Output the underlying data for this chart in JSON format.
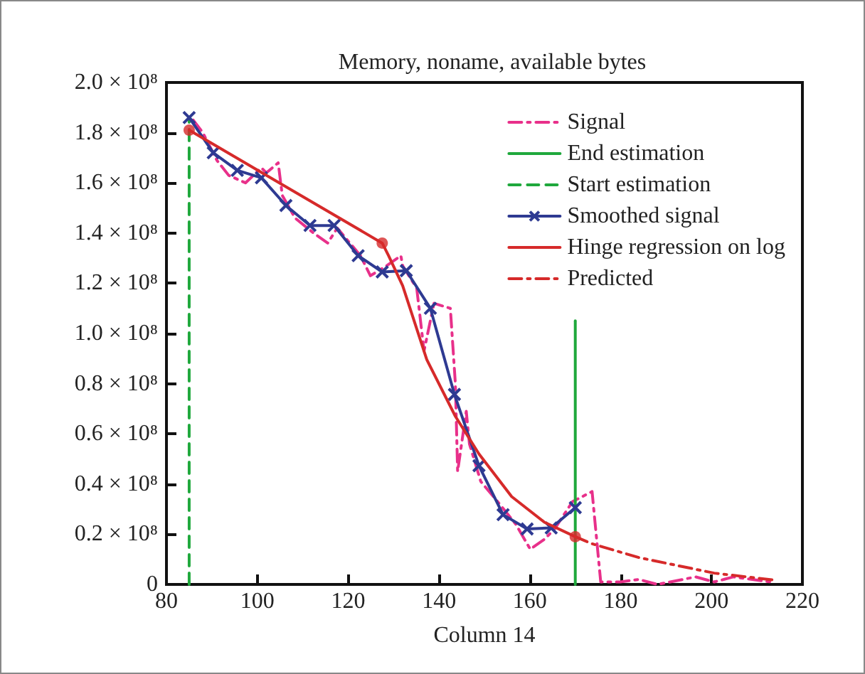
{
  "chart_data": {
    "type": "line",
    "title": "Memory, noname, available bytes",
    "xlabel": "Column 14",
    "xlim": [
      80,
      220
    ],
    "xticks": [
      80,
      100,
      120,
      140,
      160,
      180,
      200,
      220
    ],
    "ylim": [
      0,
      200000000
    ],
    "yticks": [
      0,
      {
        "value": 20000000,
        "label": "0.2 × 10⁸"
      },
      {
        "value": 40000000,
        "label": "0.4 × 10⁸"
      },
      {
        "value": 60000000,
        "label": "0.6 × 10⁸"
      },
      {
        "value": 80000000,
        "label": "0.8 × 10⁸"
      },
      {
        "value": 100000000,
        "label": "1.0 × 10⁸"
      },
      {
        "value": 120000000,
        "label": "1.2 × 10⁸"
      },
      {
        "value": 140000000,
        "label": "1.4 × 10⁸"
      },
      {
        "value": 160000000,
        "label": "1.6 × 10⁸"
      },
      {
        "value": 180000000,
        "label": "1.8 × 10⁸"
      },
      {
        "value": 200000000,
        "label": "2.0 × 10⁸"
      }
    ],
    "grid": false,
    "legend": "top right",
    "series": [
      {
        "name": "Signal",
        "color": "#e8308a",
        "line_style": "dashdot",
        "marker": "none",
        "x": [
          85.9,
          88.0,
          91.1,
          93.7,
          97.4,
          100.9,
          102.0,
          104.6,
          105.5,
          108.3,
          112.4,
          115.5,
          117.6,
          122.7,
          124.9,
          128.5,
          131.6,
          132.0,
          135.1,
          136.7,
          138.9,
          142.5,
          143.6,
          144.1,
          146.0,
          146.7,
          149.2,
          152.9,
          156.9,
          160.1,
          163.2,
          165.4,
          169.4,
          173.7,
          174.7,
          175.6,
          179.9,
          184.0,
          188.1,
          196.5,
          200.6,
          204.8,
          213.0
        ],
        "values": [
          185000000,
          180000000,
          169000000,
          163000000,
          160000000,
          166000000,
          164000000,
          168000000,
          155000000,
          146000000,
          140000000,
          136000000,
          142000000,
          131000000,
          123000000,
          127000000,
          131000000,
          127000000,
          118000000,
          93000000,
          112000000,
          110000000,
          80000000,
          45000000,
          69000000,
          56000000,
          41000000,
          33000000,
          24000000,
          14000000,
          18000000,
          22000000,
          33000000,
          37000000,
          18000000,
          1000000,
          1000000,
          2000000,
          0,
          3000000,
          1000000,
          3000000,
          1000000
        ]
      },
      {
        "name": "End estimation",
        "color": "#1fa83c",
        "line_style": "solid",
        "marker": "none",
        "x": [
          170,
          170
        ],
        "values": [
          0,
          105000000
        ]
      },
      {
        "name": "Start estimation",
        "color": "#1fa83c",
        "line_style": "dashed",
        "marker": "none",
        "x": [
          85,
          85
        ],
        "values": [
          0,
          185000000
        ]
      },
      {
        "name": "Smoothed signal",
        "color": "#2e3a92",
        "line_style": "solid",
        "marker": "cross",
        "x": [
          85,
          90.3,
          95.6,
          100.9,
          106.3,
          111.6,
          116.9,
          122.2,
          127.5,
          132.8,
          138.1,
          143.4,
          148.8,
          154.1,
          159.4,
          164.7,
          170
        ],
        "values": [
          186000000,
          172000000,
          165000000,
          162000000,
          151000000,
          143000000,
          143000000,
          131000000,
          124500000,
          125000000,
          110000000,
          75700000,
          47300000,
          27800000,
          22100000,
          22500000,
          30600000
        ]
      },
      {
        "name": "Hinge regression on log",
        "color": "#d62a2a",
        "line_style": "solid",
        "marker": "none",
        "x": [
          85,
          127.5,
          128.9,
          132.0,
          137.3,
          143.6,
          148.8,
          156.0,
          163.2,
          170
        ],
        "values": [
          181000000,
          136000000,
          131000000,
          119000000,
          89600000,
          67000000,
          52000000,
          35000000,
          24800000,
          19000000
        ]
      },
      {
        "type": "scatter",
        "color": "#d62a2a",
        "marker": "circle",
        "x": [
          85,
          127.5,
          170
        ],
        "values": [
          181000000,
          136000000,
          19000000
        ]
      },
      {
        "name": "Predicted",
        "color": "#d62a2a",
        "line_style": "dashdot",
        "marker": "none",
        "x": [
          170,
          173.7,
          184.0,
          200.6,
          214
        ],
        "values": [
          19000000,
          16200000,
          10700000,
          4500000,
          1700000
        ]
      }
    ]
  }
}
